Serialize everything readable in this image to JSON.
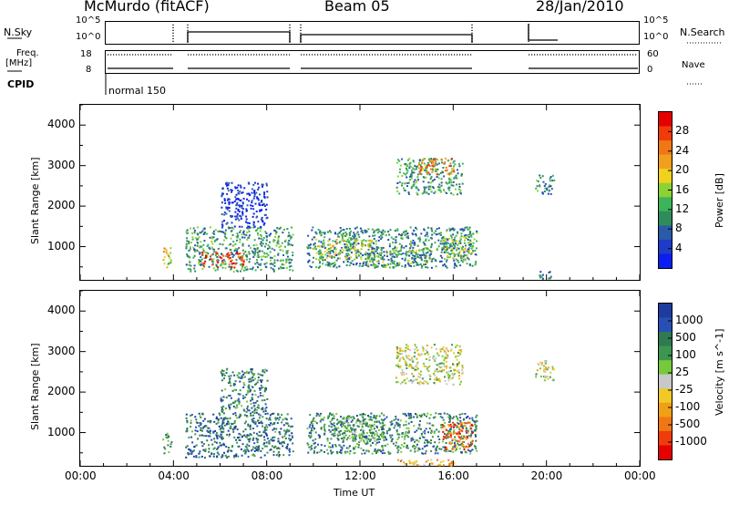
{
  "header": {
    "station": "McMurdo (fitACF)",
    "beam": "Beam 05",
    "date": "28/Jan/2010"
  },
  "strips": {
    "nsky_label": "N.Sky",
    "nsky_ticks": [
      "10^5",
      "10^0"
    ],
    "nsearch_label": "N.Search",
    "freq_label_1": "Freq.",
    "freq_label_2": "[MHz]",
    "freq_ticks": [
      "18",
      "8"
    ],
    "nave_ticks": [
      "60",
      "0"
    ],
    "nave_label": "Nave",
    "cpid_label": "CPID",
    "cpid_value": "normal 150"
  },
  "colors": {
    "power_scale": [
      "#0a1ef0",
      "#1e3cc8",
      "#2a5aa8",
      "#2f8c5a",
      "#3cb45a",
      "#8cd232",
      "#f0d21e",
      "#f0a01e",
      "#f07814",
      "#f03c0a",
      "#e60000"
    ],
    "velocity_scale": [
      "#1e3ca0",
      "#2850b4",
      "#2f7a50",
      "#3c9650",
      "#78c83c",
      "#c8c8c8",
      "#f0c828",
      "#f0a014",
      "#f07814",
      "#f03c0a",
      "#e60000"
    ]
  },
  "chart_data": [
    {
      "type": "heatmap",
      "panel": "power",
      "x_unit": "Time UT",
      "xlabel": "Time UT",
      "ylabel": "Slant Range [km]",
      "xlim": [
        0,
        24
      ],
      "ylim": [
        180,
        4500
      ],
      "x_tick_labels": [
        "00:00",
        "04:00",
        "08:00",
        "12:00",
        "16:00",
        "20:00",
        "00:00"
      ],
      "y_tick_labels": [
        "1000",
        "2000",
        "3000",
        "4000"
      ],
      "colorbar_label": "Power [dB]",
      "colorbar_ticks": [
        "4",
        "8",
        "12",
        "16",
        "20",
        "24",
        "28"
      ],
      "colorbar_range": [
        0,
        30
      ],
      "regions": [
        {
          "t0": 4.5,
          "t1": 9.1,
          "r0": 400,
          "r1": 1500,
          "level": 0.35
        },
        {
          "t0": 5.2,
          "t1": 7.0,
          "r0": 500,
          "r1": 900,
          "level": 0.85
        },
        {
          "t0": 9.7,
          "t1": 17.0,
          "r0": 500,
          "r1": 1500,
          "level": 0.3
        },
        {
          "t0": 10.0,
          "t1": 12.5,
          "r0": 700,
          "r1": 1200,
          "level": 0.55
        },
        {
          "t0": 12.3,
          "t1": 15.0,
          "r0": 500,
          "r1": 1000,
          "level": 0.4
        },
        {
          "t0": 15.5,
          "t1": 16.8,
          "r0": 700,
          "r1": 1300,
          "level": 0.5
        },
        {
          "t0": 13.5,
          "t1": 16.4,
          "r0": 2300,
          "r1": 3200,
          "level": 0.35
        },
        {
          "t0": 14.5,
          "t1": 16.0,
          "r0": 2800,
          "r1": 3200,
          "level": 0.75
        },
        {
          "t0": 6.0,
          "t1": 8.0,
          "r0": 1500,
          "r1": 2600,
          "level": 0.1
        },
        {
          "t0": 19.5,
          "t1": 20.3,
          "r0": 2300,
          "r1": 2800,
          "level": 0.3
        },
        {
          "t0": 3.5,
          "t1": 3.9,
          "r0": 500,
          "r1": 1000,
          "level": 0.6
        },
        {
          "t0": 19.6,
          "t1": 20.2,
          "r0": 200,
          "r1": 400,
          "level": 0.3
        }
      ]
    },
    {
      "type": "heatmap",
      "panel": "velocity",
      "xlabel": "Time UT",
      "ylabel": "Slant Range [km]",
      "xlim": [
        0,
        24
      ],
      "ylim": [
        180,
        4500
      ],
      "x_tick_labels": [
        "00:00",
        "04:00",
        "08:00",
        "12:00",
        "16:00",
        "20:00",
        "00:00"
      ],
      "y_tick_labels": [
        "1000",
        "2000",
        "3000",
        "4000"
      ],
      "colorbar_label": "Velocity [m s^-1]",
      "colorbar_ticks": [
        "1000",
        "500",
        "100",
        "25",
        "-25",
        "-100",
        "-500",
        "-1000"
      ],
      "regions": [
        {
          "t0": 4.5,
          "t1": 9.1,
          "r0": 400,
          "r1": 1500,
          "level": 0.2
        },
        {
          "t0": 6.0,
          "t1": 8.0,
          "r0": 1500,
          "r1": 2600,
          "level": 0.25
        },
        {
          "t0": 9.7,
          "t1": 17.0,
          "r0": 500,
          "r1": 1500,
          "level": 0.25
        },
        {
          "t0": 11.0,
          "t1": 13.0,
          "r0": 800,
          "r1": 1400,
          "level": 0.35
        },
        {
          "t0": 15.5,
          "t1": 16.8,
          "r0": 600,
          "r1": 1300,
          "level": 0.8
        },
        {
          "t0": 13.5,
          "t1": 16.4,
          "r0": 2200,
          "r1": 3200,
          "level": 0.5
        },
        {
          "t0": 13.5,
          "t1": 16.4,
          "r0": 200,
          "r1": 350,
          "level": 0.65
        },
        {
          "t0": 19.5,
          "t1": 20.3,
          "r0": 2300,
          "r1": 2800,
          "level": 0.5
        },
        {
          "t0": 3.5,
          "t1": 3.9,
          "r0": 500,
          "r1": 1000,
          "level": 0.3
        }
      ]
    }
  ]
}
